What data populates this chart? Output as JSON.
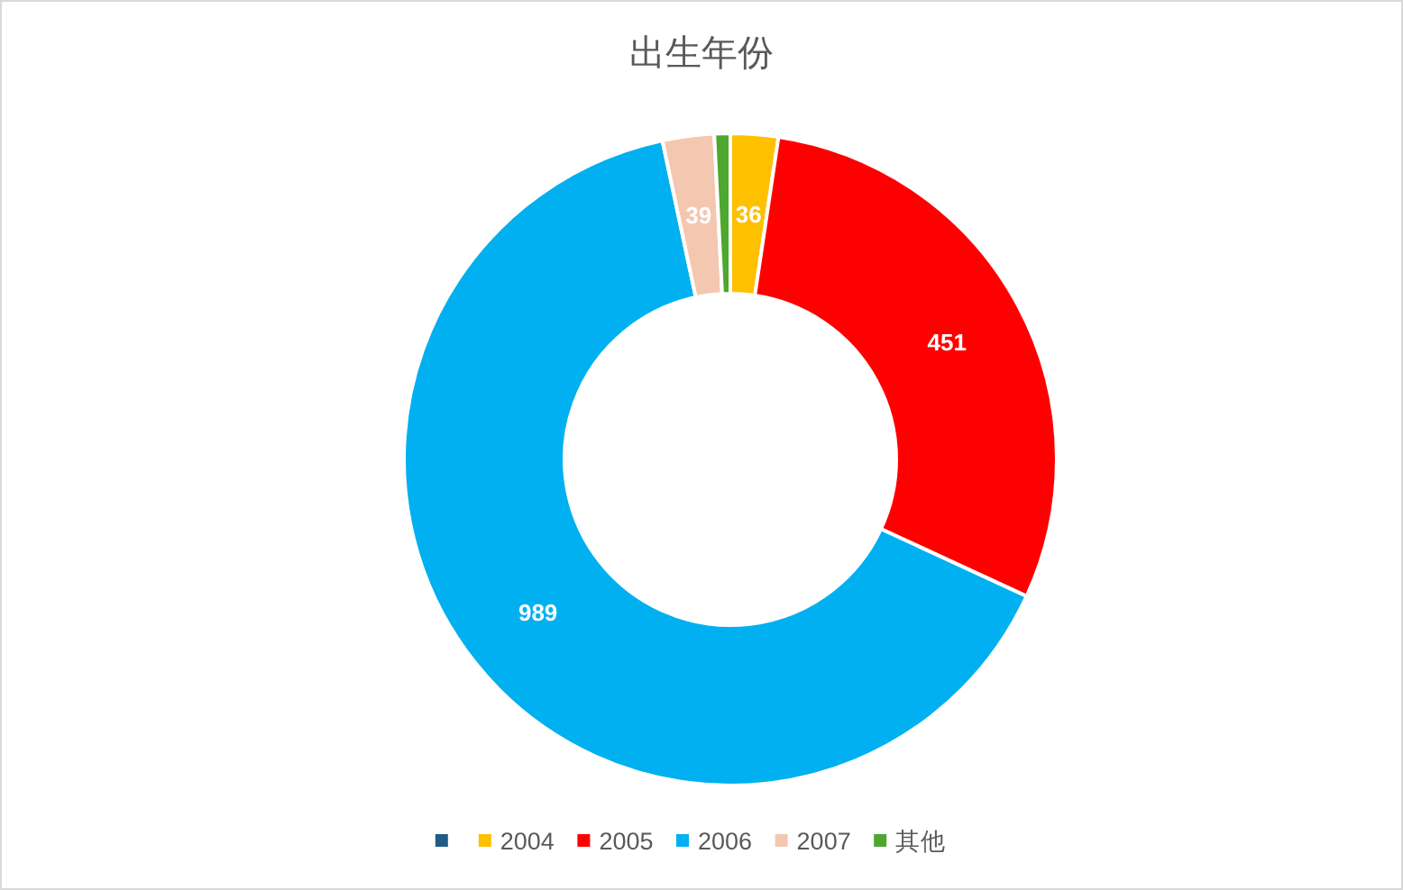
{
  "chart_data": {
    "type": "donut",
    "title": "出生年份",
    "categories": [
      null,
      "2004",
      "2005",
      "2006",
      "2007",
      "其他"
    ],
    "values": [
      0,
      36,
      451,
      989,
      39,
      12
    ],
    "colors": [
      "#1f5c87",
      "#ffc000",
      "#ff0000",
      "#00b0f0",
      "#f4c7b0",
      "#4ea72e"
    ],
    "value_labels": [
      null,
      "36",
      "451",
      "989",
      "39",
      null
    ],
    "legend": "bottom"
  }
}
